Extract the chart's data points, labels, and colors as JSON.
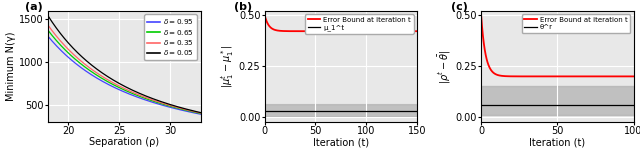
{
  "panel_a": {
    "label": "(a)",
    "xlabel": "Separation (ρ)",
    "ylabel": "Minimum N(γ)",
    "xlim": [
      18,
      33
    ],
    "ylim": [
      300,
      1600
    ],
    "yticks": [
      500,
      1000,
      1500
    ],
    "xticks": [
      20,
      25,
      30
    ],
    "lines": [
      {
        "delta": 0.95,
        "color": "#4444ff",
        "scale": 1300,
        "exp": 2.0
      },
      {
        "delta": 0.65,
        "color": "#00cc00",
        "scale": 1370,
        "exp": 2.05
      },
      {
        "delta": 0.35,
        "color": "#ff6666",
        "scale": 1430,
        "exp": 2.1
      },
      {
        "delta": 0.05,
        "color": "black",
        "scale": 1540,
        "exp": 2.2
      }
    ]
  },
  "panel_b": {
    "label": "(b)",
    "xlabel": "Iteration (t)",
    "ylabel": "|μ_1^t − μ_1^*|",
    "xlim": [
      0,
      150
    ],
    "ylim": [
      -0.02,
      0.52
    ],
    "yticks": [
      0,
      0.25,
      0.5
    ],
    "xticks": [
      0,
      50,
      100,
      150
    ],
    "error_start": 0.5,
    "error_end": 0.42,
    "error_decay": 0.25,
    "signal_level": 0.03,
    "band_low": 0.005,
    "band_high": 0.065,
    "legend": [
      "Error Bound at iteration t",
      "μ_1^t"
    ]
  },
  "panel_c": {
    "label": "(c)",
    "xlabel": "Iteration (t)",
    "ylabel": "|θ^t − θ̅|",
    "xlim": [
      0,
      100
    ],
    "ylim": [
      -0.02,
      0.52
    ],
    "yticks": [
      0,
      0.25,
      0.5
    ],
    "xticks": [
      0,
      50,
      100
    ],
    "error_start": 0.5,
    "error_end": 0.2,
    "error_decay": 0.35,
    "signal_level": 0.06,
    "band_low": 0.01,
    "band_high": 0.155,
    "legend": [
      "Error Bound at iteration t",
      "θ^r"
    ]
  },
  "bg_color": "#ffffff",
  "axes_bg": "#e8e8e8",
  "grid_color": "#ffffff",
  "fontsize": 7
}
